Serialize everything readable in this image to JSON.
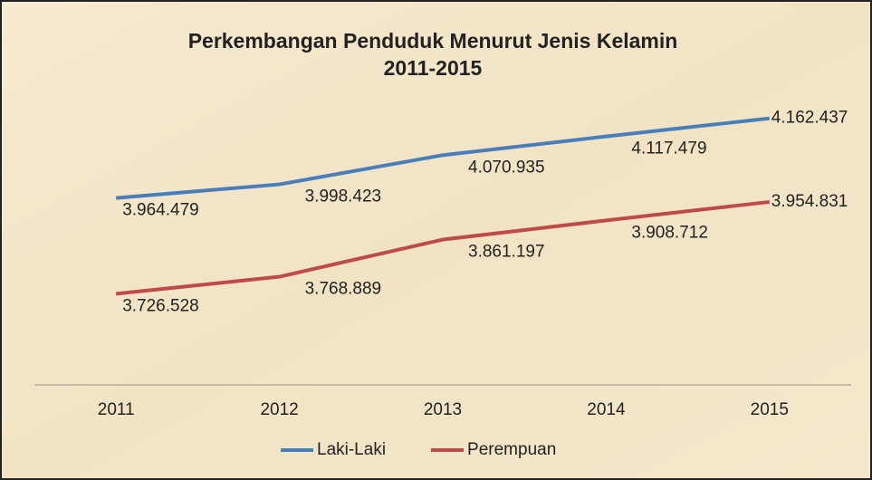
{
  "chart_data": {
    "type": "line",
    "title": [
      "Perkembangan Penduduk Menurut Jenis Kelamin",
      "2011-2015"
    ],
    "categories": [
      "2011",
      "2012",
      "2013",
      "2014",
      "2015"
    ],
    "series": [
      {
        "name": "Laki-Laki",
        "color": "#4a7ebb",
        "values": [
          3964479,
          3998423,
          4070935,
          4117479,
          4162437
        ],
        "value_labels": [
          "3.964.479",
          "3.998.423",
          "4.070.935",
          "4.117.479",
          "4.162.437"
        ]
      },
      {
        "name": "Perempuan",
        "color": "#be4b48",
        "values": [
          3726528,
          3768889,
          3861197,
          3908712,
          3954831
        ],
        "value_labels": [
          "3.726.528",
          "3.768.889",
          "3.861.197",
          "3.908.712",
          "3.954.831"
        ]
      }
    ],
    "ylim": [
      3500000,
      4200000
    ],
    "legend": "bottom"
  }
}
